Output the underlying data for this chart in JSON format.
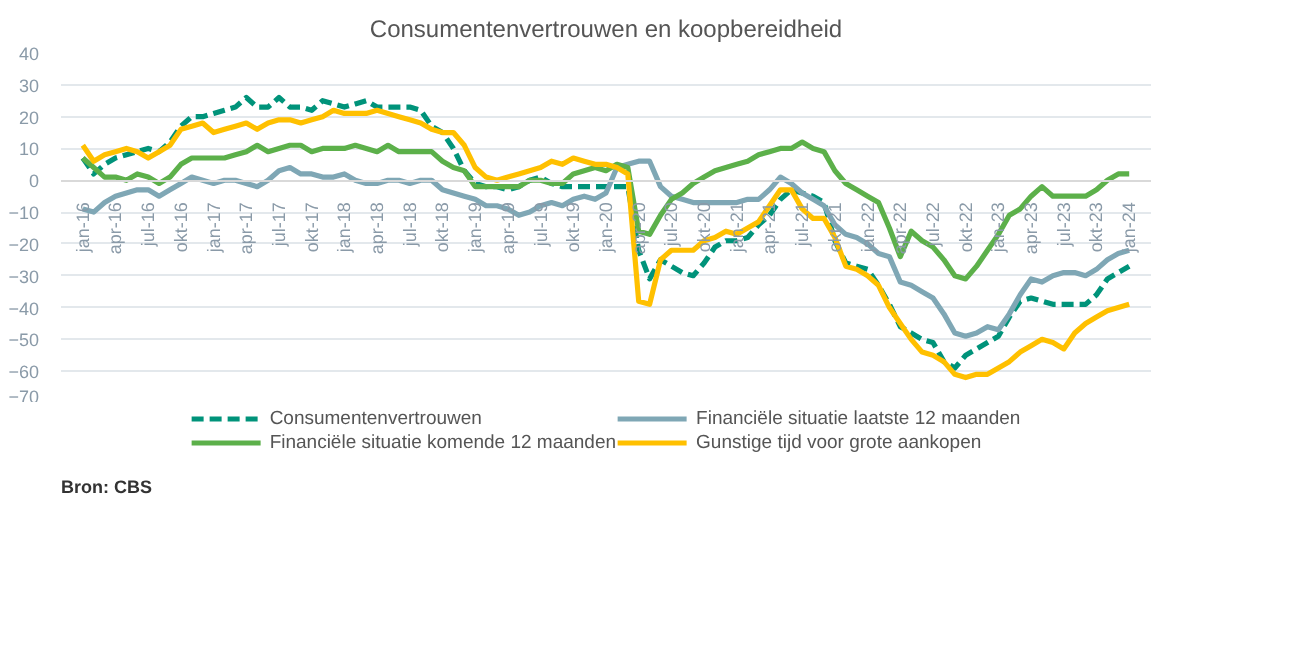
{
  "chart_data": {
    "type": "line",
    "title": "Consumentenvertrouwen en koopbereidheid",
    "categories": [
      "jan-16",
      null,
      null,
      "apr-16",
      null,
      null,
      "jul-16",
      null,
      null,
      "okt-16",
      null,
      null,
      "jan-17",
      null,
      null,
      "apr-17",
      null,
      null,
      "jul-17",
      null,
      null,
      "okt-17",
      null,
      null,
      "jan-18",
      null,
      null,
      "apr-18",
      null,
      null,
      "jul-18",
      null,
      null,
      "okt-18",
      null,
      null,
      "jan-19",
      null,
      null,
      "apr-19",
      null,
      null,
      "jul-19",
      null,
      null,
      "okt-19",
      null,
      null,
      "jan-20",
      null,
      null,
      "apr-20",
      null,
      null,
      "jul-20",
      null,
      null,
      "okt-20",
      null,
      null,
      "jan-21",
      null,
      null,
      "apr-21",
      null,
      null,
      "jul-21",
      null,
      null,
      "okt-21",
      null,
      null,
      "jan-22",
      null,
      null,
      "apr-22",
      null,
      null,
      "jul-22",
      null,
      null,
      "okt-22",
      null,
      null,
      "jan-23",
      null,
      null,
      "apr-23",
      null,
      null,
      "jul-23",
      null,
      null,
      "okt-23",
      null,
      null,
      "jan-24"
    ],
    "series": [
      {
        "name": "Consumentenvertrouwen",
        "color": "#00937a",
        "line_style": "dashed",
        "values": [
          7,
          2,
          5,
          7,
          8,
          9,
          10,
          9,
          12,
          17,
          20,
          20,
          21,
          22,
          23,
          26,
          23,
          23,
          26,
          23,
          23,
          22,
          25,
          24,
          23,
          24,
          25,
          23,
          23,
          23,
          23,
          22,
          17,
          15,
          10,
          3,
          -1,
          -2,
          -2,
          -3,
          -2,
          0,
          1,
          -1,
          -2,
          -2,
          -2,
          -2,
          -2,
          -2,
          -2,
          -22,
          -31,
          -25,
          -27,
          -29,
          -30,
          -26,
          -21,
          -19,
          -19,
          -18,
          -14,
          -11,
          -6,
          -3,
          -4,
          -5,
          -7,
          -19,
          -26,
          -27,
          -28,
          -33,
          -39,
          -46,
          -48,
          -50,
          -51,
          -57,
          -59,
          -55,
          -53,
          -51,
          -49,
          -43,
          -38,
          -37,
          -38,
          -39,
          -39,
          -39,
          -39,
          -36,
          -31,
          -29,
          -27
        ]
      },
      {
        "name": "Financiële situatie laatste 12 maanden",
        "color": "#7fa7b5",
        "line_style": "solid",
        "values": [
          -9,
          -10,
          -7,
          -5,
          -4,
          -3,
          -3,
          -5,
          -3,
          -1,
          1,
          0,
          -1,
          0,
          0,
          -1,
          -2,
          0,
          3,
          4,
          2,
          2,
          1,
          1,
          2,
          0,
          -1,
          -1,
          0,
          0,
          -1,
          0,
          0,
          -3,
          -4,
          -5,
          -6,
          -8,
          -8,
          -9,
          -11,
          -10,
          -8,
          -7,
          -8,
          -6,
          -5,
          -6,
          -4,
          4,
          5,
          6,
          6,
          -2,
          -5,
          -6,
          -7,
          -7,
          -7,
          -7,
          -7,
          -6,
          -6,
          -3,
          1,
          -1,
          -4,
          -6,
          -8,
          -14,
          -17,
          -18,
          -20,
          -23,
          -24,
          -32,
          -33,
          -35,
          -37,
          -42,
          -48,
          -49,
          -48,
          -46,
          -47,
          -42,
          -36,
          -31,
          -32,
          -30,
          -29,
          -29,
          -30,
          -28,
          -25,
          -23,
          -22
        ]
      },
      {
        "name": "Financiële situatie komende 12 maanden",
        "color": "#5cb04a",
        "line_style": "solid",
        "values": [
          7,
          4,
          1,
          1,
          0,
          2,
          1,
          -1,
          1,
          5,
          7,
          7,
          7,
          7,
          8,
          9,
          11,
          9,
          10,
          11,
          11,
          9,
          10,
          10,
          10,
          11,
          10,
          9,
          11,
          9,
          9,
          9,
          9,
          6,
          4,
          3,
          -2,
          -2,
          -2,
          -2,
          -2,
          0,
          0,
          -1,
          -1,
          2,
          3,
          4,
          3,
          5,
          4,
          -16,
          -17,
          -11,
          -6,
          -4,
          -1,
          1,
          3,
          4,
          5,
          6,
          8,
          9,
          10,
          10,
          12,
          10,
          9,
          3,
          -1,
          -3,
          -5,
          -7,
          -15,
          -24,
          -16,
          -19,
          -21,
          -25,
          -30,
          -31,
          -27,
          -22,
          -17,
          -11,
          -9,
          -5,
          -2,
          -5,
          -5,
          -5,
          -5,
          -3,
          0,
          2,
          2
        ]
      },
      {
        "name": "Gunstige tijd voor grote aankopen",
        "color": "#ffc000",
        "line_style": "solid",
        "values": [
          11,
          6,
          8,
          9,
          10,
          9,
          7,
          9,
          11,
          16,
          17,
          18,
          15,
          16,
          17,
          18,
          16,
          18,
          19,
          19,
          18,
          19,
          20,
          22,
          21,
          21,
          21,
          22,
          21,
          20,
          19,
          18,
          16,
          15,
          15,
          11,
          4,
          1,
          0,
          1,
          2,
          3,
          4,
          6,
          5,
          7,
          6,
          5,
          5,
          4,
          2,
          -38,
          -39,
          -25,
          -22,
          -22,
          -22,
          -19,
          -18,
          -16,
          -17,
          -15,
          -13,
          -8,
          -3,
          -3,
          -9,
          -12,
          -12,
          -18,
          -27,
          -28,
          -30,
          -33,
          -40,
          -45,
          -50,
          -54,
          -55,
          -57,
          -61,
          -62,
          -61,
          -61,
          -59,
          -57,
          -54,
          -52,
          -50,
          -51,
          -53,
          -48,
          -45,
          -43,
          -41,
          -40,
          -39
        ]
      }
    ],
    "ylim": [
      -70,
      40
    ],
    "yticks": [
      -70,
      -60,
      -50,
      -40,
      -30,
      -20,
      -10,
      0,
      10,
      20,
      30,
      40
    ],
    "grid": "y",
    "legend": "bottom",
    "marker": "none",
    "annotations": [
      "Bron: CBS"
    ]
  }
}
